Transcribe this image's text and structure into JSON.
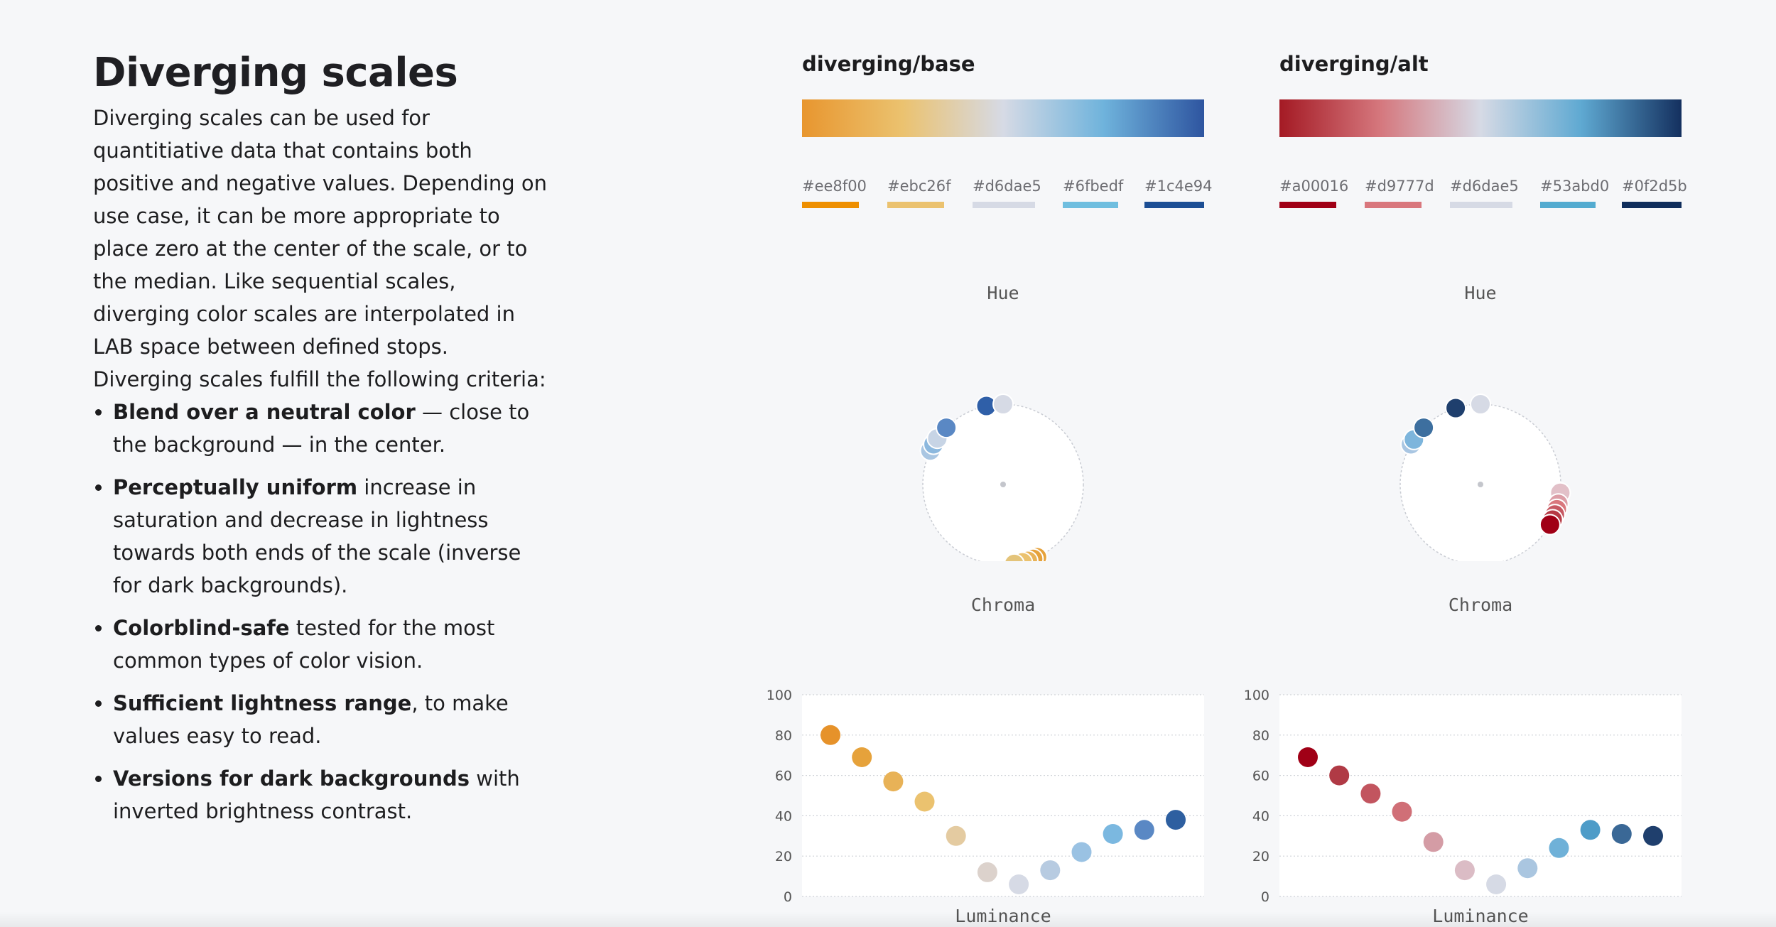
{
  "heading": "Diverging scales",
  "intro": "Diverging scales can be used for quantitiative data that contains both positive and negative values. Depending on use case, it can be more appropriate to place zero at the center of the scale, or to the median. Like sequential scales, diverging color scales are interpolated in LAB space between defined stops.",
  "criteria_intro": "Diverging scales fulfill the following criteria:",
  "criteria": [
    {
      "bold": "Blend over a neutral color",
      "rest": " — close to the background — in the center."
    },
    {
      "bold": "Perceptually uniform",
      "rest": " increase in saturation and decrease in lightness towards both ends of the scale (inverse for dark backgrounds)."
    },
    {
      "bold": "Colorblind-safe",
      "rest": " tested for the most common types of color vision."
    },
    {
      "bold": "Sufficient lightness range",
      "rest": ", to make values easy to read."
    },
    {
      "bold": "Versions for dark backgrounds",
      "rest": " with inverted brightness contrast."
    }
  ],
  "labels": {
    "hue": "Hue",
    "chroma": "Chroma",
    "luminance": "Luminance"
  },
  "scales": [
    {
      "title": "diverging/base",
      "stops": [
        "#ee8f00",
        "#ebc26f",
        "#d6dae5",
        "#6fbedf",
        "#1c4e94"
      ],
      "ramp": [
        "#e8962f",
        "#ebc26f",
        "#d6dae5",
        "#6fb3dc",
        "#2e55a0"
      ],
      "hue_dots": [
        {
          "angle_deg": 155,
          "color": "#e6a23b"
        },
        {
          "angle_deg": 158,
          "color": "#e6a23b"
        },
        {
          "angle_deg": 162,
          "color": "#e8b257"
        },
        {
          "angle_deg": 166,
          "color": "#ebc26f"
        },
        {
          "angle_deg": 172,
          "color": "#e4c47a"
        },
        {
          "angle_deg": 295,
          "color": "#a9c6e2"
        },
        {
          "angle_deg": 300,
          "color": "#8cb8de"
        },
        {
          "angle_deg": 305,
          "color": "#c7d4e5"
        },
        {
          "angle_deg": 315,
          "color": "#5a88c4"
        },
        {
          "angle_deg": 348,
          "color": "#2f5fa8"
        },
        {
          "angle_deg": 0,
          "color": "#d6dae5"
        }
      ],
      "chroma": {
        "yticks": [
          0,
          20,
          40,
          60,
          80,
          100
        ],
        "values": [
          80,
          69,
          57,
          47,
          30,
          12,
          6,
          13,
          22,
          31,
          33,
          38
        ],
        "colors": [
          "#e6922a",
          "#e6a23b",
          "#e8b257",
          "#ebc26f",
          "#e4cba1",
          "#dcd2cc",
          "#d6dae5",
          "#b7cbe1",
          "#9ac2e3",
          "#7bb8e0",
          "#5a88c4",
          "#2e5fa0"
        ]
      }
    },
    {
      "title": "diverging/alt",
      "stops": [
        "#a00016",
        "#d9777d",
        "#d6dae5",
        "#53abd0",
        "#0f2d5b"
      ],
      "ramp": [
        "#a41a24",
        "#d5777d",
        "#d6dae5",
        "#5fa9d2",
        "#14305f"
      ],
      "hue_dots": [
        {
          "angle_deg": 96,
          "color": "#e2c0c8"
        },
        {
          "angle_deg": 104,
          "color": "#dc9da6"
        },
        {
          "angle_deg": 108,
          "color": "#d9777d"
        },
        {
          "angle_deg": 112,
          "color": "#c65862"
        },
        {
          "angle_deg": 116,
          "color": "#b63a45"
        },
        {
          "angle_deg": 120,
          "color": "#a00016"
        },
        {
          "angle_deg": 300,
          "color": "#a9c6e2"
        },
        {
          "angle_deg": 304,
          "color": "#7db5dc"
        },
        {
          "angle_deg": 315,
          "color": "#3d6f9f"
        },
        {
          "angle_deg": 342,
          "color": "#1f3f6d"
        },
        {
          "angle_deg": 0,
          "color": "#d6dae5"
        }
      ],
      "chroma": {
        "yticks": [
          0,
          20,
          40,
          60,
          80,
          100
        ],
        "values": [
          69,
          60,
          51,
          42,
          27,
          13,
          6,
          14,
          24,
          33,
          31,
          30
        ],
        "colors": [
          "#a00016",
          "#b03a45",
          "#c2555f",
          "#d06f77",
          "#d49ca5",
          "#dbbcc5",
          "#d6dae5",
          "#aac6e0",
          "#6fb1d8",
          "#4e9cc8",
          "#3a6896",
          "#1f3f6d"
        ]
      }
    }
  ]
}
